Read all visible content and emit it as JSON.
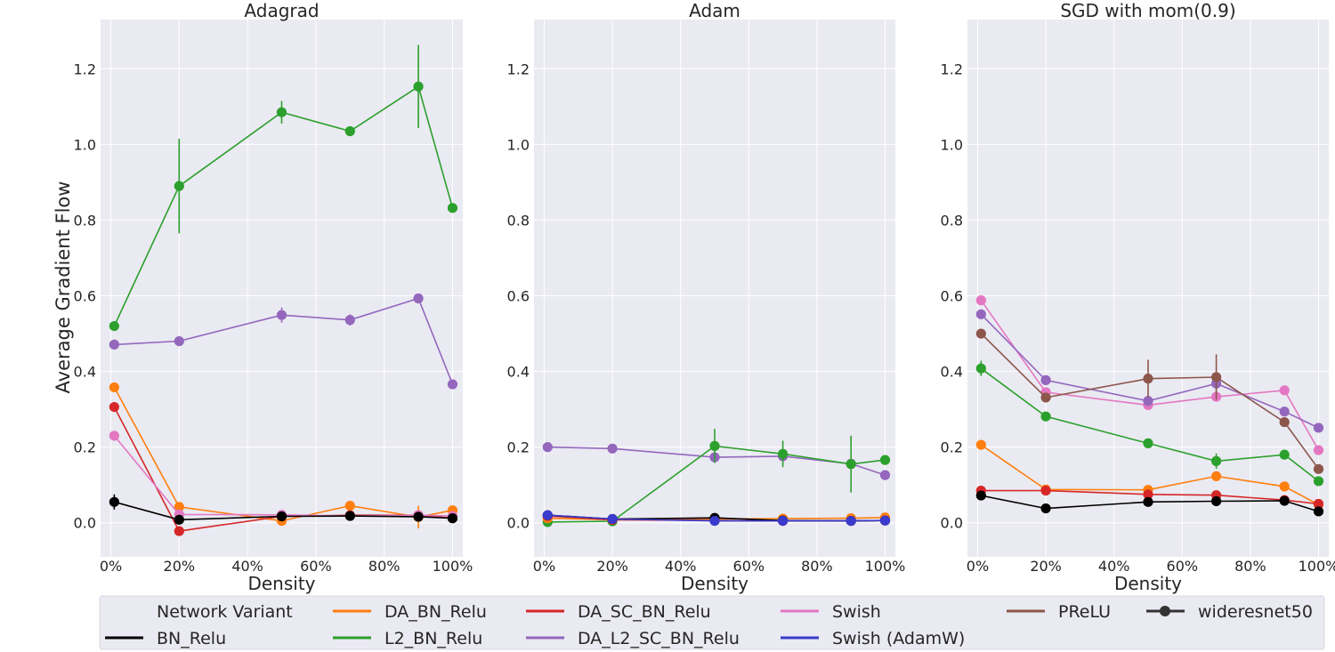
{
  "figure": {
    "ylabel": "Average Gradient Flow",
    "xlabel": "Density",
    "ylim": [
      -0.09,
      1.33
    ],
    "xlim": [
      -3,
      103
    ],
    "yticks": [
      0.0,
      0.2,
      0.4,
      0.6,
      0.8,
      1.0,
      1.2
    ],
    "ytick_labels": [
      "0.0",
      "0.2",
      "0.4",
      "0.6",
      "0.8",
      "1.0",
      "1.2"
    ],
    "xticks": [
      0,
      20,
      40,
      60,
      80,
      100
    ],
    "xtick_labels": [
      "0%",
      "20%",
      "40%",
      "60%",
      "80%",
      "100%"
    ]
  },
  "legend": {
    "title": "Network Variant",
    "entries": [
      {
        "name": "BN_Relu",
        "color": "#000000",
        "marker": false
      },
      {
        "name": "DA_BN_Relu",
        "color": "#ff7f0e",
        "marker": false
      },
      {
        "name": "L2_BN_Relu",
        "color": "#2ca02c",
        "marker": false
      },
      {
        "name": "DA_SC_BN_Relu",
        "color": "#d62728",
        "marker": false
      },
      {
        "name": "DA_L2_SC_BN_Relu",
        "color": "#9467bd",
        "marker": false
      },
      {
        "name": "Swish",
        "color": "#e377c2",
        "marker": false
      },
      {
        "name": "Swish (AdamW)",
        "color": "#3a3acc",
        "marker": false
      },
      {
        "name": "PReLU",
        "color": "#8c564b",
        "marker": false
      },
      {
        "name": "wideresnet50",
        "color": "#333333",
        "marker": true
      }
    ]
  },
  "chart_data": [
    {
      "type": "line",
      "title": "Adagrad",
      "xlabel": "Density",
      "ylabel": "Average Gradient Flow",
      "x": [
        1,
        20,
        50,
        70,
        90,
        100
      ],
      "series": [
        {
          "name": "L2_BN_Relu",
          "color": "#2ca02c",
          "x": [
            1,
            20,
            50,
            70,
            90,
            100
          ],
          "values": [
            0.52,
            0.89,
            1.085,
            1.035,
            1.153,
            0.832
          ],
          "err": [
            0.01,
            0.125,
            0.03,
            0.008,
            0.11,
            0.0
          ]
        },
        {
          "name": "DA_L2_SC_BN_Relu",
          "color": "#9467bd",
          "x": [
            1,
            20,
            50,
            70,
            90,
            100
          ],
          "values": [
            0.471,
            0.48,
            0.549,
            0.536,
            0.593,
            0.366
          ],
          "err": [
            0.0,
            0.0,
            0.02,
            0.015,
            0.0,
            0.0
          ]
        },
        {
          "name": "DA_BN_Relu",
          "color": "#ff7f0e",
          "x": [
            1,
            20,
            50,
            70,
            90,
            100
          ],
          "values": [
            0.358,
            0.042,
            0.005,
            0.045,
            0.015,
            0.033
          ],
          "err": [
            0.0,
            0.0,
            0.0,
            0.0,
            0.03,
            0.0
          ]
        },
        {
          "name": "DA_SC_BN_Relu",
          "color": "#d62728",
          "x": [
            1,
            20,
            50,
            70,
            90,
            100
          ],
          "values": [
            0.306,
            -0.022,
            0.017,
            0.02,
            0.02,
            0.012
          ],
          "err": [
            0.0,
            0.0,
            0.0,
            0.0,
            0.0,
            0.0
          ]
        },
        {
          "name": "Swish",
          "color": "#e377c2",
          "x": [
            1,
            20,
            50,
            70,
            90,
            100
          ],
          "values": [
            0.23,
            0.022,
            0.021,
            0.018,
            0.02,
            0.018
          ],
          "err": [
            0.0,
            0.0,
            0.0,
            0.0,
            0.0,
            0.0
          ]
        },
        {
          "name": "BN_Relu",
          "color": "#000000",
          "x": [
            1,
            20,
            50,
            70,
            90,
            100
          ],
          "values": [
            0.055,
            0.008,
            0.017,
            0.018,
            0.016,
            0.012
          ],
          "err": [
            0.02,
            0.0,
            0.0,
            0.0,
            0.0,
            0.0
          ]
        }
      ]
    },
    {
      "type": "line",
      "title": "Adam",
      "xlabel": "Density",
      "ylabel": "",
      "x": [
        1,
        20,
        50,
        70,
        90,
        100
      ],
      "series": [
        {
          "name": "DA_L2_SC_BN_Relu",
          "color": "#9467bd",
          "x": [
            1,
            20,
            50,
            70,
            90,
            100
          ],
          "values": [
            0.2,
            0.196,
            0.173,
            0.176,
            0.156,
            0.126
          ],
          "err": [
            0.0,
            0.0,
            0.0,
            0.0,
            0.0,
            0.0
          ]
        },
        {
          "name": "L2_BN_Relu",
          "color": "#2ca02c",
          "x": [
            1,
            20,
            50,
            70,
            90,
            100
          ],
          "values": [
            0.002,
            0.004,
            0.203,
            0.182,
            0.155,
            0.166
          ],
          "err": [
            0.0,
            0.0,
            0.045,
            0.035,
            0.075,
            0.0
          ]
        },
        {
          "name": "DA_BN_Relu",
          "color": "#ff7f0e",
          "x": [
            1,
            20,
            50,
            70,
            90,
            100
          ],
          "values": [
            0.012,
            0.008,
            0.01,
            0.011,
            0.012,
            0.014
          ],
          "err": [
            0.0,
            0.0,
            0.0,
            0.0,
            0.0,
            0.0
          ]
        },
        {
          "name": "DA_SC_BN_Relu",
          "color": "#d62728",
          "x": [
            1,
            20,
            50,
            70,
            90,
            100
          ],
          "values": [
            0.018,
            0.008,
            0.006,
            0.005,
            0.005,
            0.006
          ],
          "err": [
            0.0,
            0.0,
            0.0,
            0.0,
            0.0,
            0.0
          ]
        },
        {
          "name": "BN_Relu",
          "color": "#000000",
          "x": [
            1,
            20,
            50,
            70,
            90,
            100
          ],
          "values": [
            0.02,
            0.01,
            0.013,
            0.006,
            0.005,
            0.006
          ],
          "err": [
            0.0,
            0.0,
            0.0,
            0.0,
            0.0,
            0.0
          ]
        },
        {
          "name": "Swish (AdamW)",
          "color": "#3a3acc",
          "x": [
            1,
            20,
            50,
            70,
            90,
            100
          ],
          "values": [
            0.02,
            0.01,
            0.005,
            0.005,
            0.005,
            0.006
          ],
          "err": [
            0.0,
            0.0,
            0.0,
            0.0,
            0.0,
            0.0
          ]
        }
      ]
    },
    {
      "type": "line",
      "title": "SGD with mom(0.9)",
      "xlabel": "Density",
      "ylabel": "",
      "x": [
        1,
        20,
        50,
        70,
        90,
        100
      ],
      "series": [
        {
          "name": "Swish",
          "color": "#e377c2",
          "x": [
            1,
            20,
            50,
            70,
            90,
            100
          ],
          "values": [
            0.588,
            0.345,
            0.311,
            0.333,
            0.35,
            0.192
          ],
          "err": [
            0.0,
            0.0,
            0.0,
            0.0,
            0.0,
            0.0
          ]
        },
        {
          "name": "DA_L2_SC_BN_Relu",
          "color": "#9467bd",
          "x": [
            1,
            20,
            50,
            70,
            90,
            100
          ],
          "values": [
            0.551,
            0.377,
            0.322,
            0.368,
            0.294,
            0.251
          ],
          "err": [
            0.0,
            0.01,
            0.0,
            0.02,
            0.0,
            0.0
          ]
        },
        {
          "name": "PReLU",
          "color": "#8c564b",
          "x": [
            1,
            20,
            50,
            70,
            90,
            100
          ],
          "values": [
            0.5,
            0.331,
            0.381,
            0.385,
            0.266,
            0.142
          ],
          "err": [
            0.0,
            0.0,
            0.05,
            0.06,
            0.0,
            0.0
          ]
        },
        {
          "name": "L2_BN_Relu",
          "color": "#2ca02c",
          "x": [
            1,
            20,
            50,
            70,
            90,
            100
          ],
          "values": [
            0.408,
            0.281,
            0.21,
            0.163,
            0.18,
            0.11
          ],
          "err": [
            0.02,
            0.0,
            0.0,
            0.02,
            0.0,
            0.0
          ]
        },
        {
          "name": "DA_BN_Relu",
          "color": "#ff7f0e",
          "x": [
            1,
            20,
            50,
            70,
            90,
            100
          ],
          "values": [
            0.206,
            0.088,
            0.087,
            0.123,
            0.096,
            0.048
          ],
          "err": [
            0.0,
            0.0,
            0.0,
            0.0,
            0.0,
            0.0
          ]
        },
        {
          "name": "DA_SC_BN_Relu",
          "color": "#d62728",
          "x": [
            1,
            20,
            50,
            70,
            90,
            100
          ],
          "values": [
            0.085,
            0.085,
            0.075,
            0.073,
            0.06,
            0.05
          ],
          "err": [
            0.0,
            0.0,
            0.0,
            0.0,
            0.0,
            0.0
          ]
        },
        {
          "name": "BN_Relu",
          "color": "#000000",
          "x": [
            1,
            20,
            50,
            70,
            90,
            100
          ],
          "values": [
            0.072,
            0.038,
            0.055,
            0.057,
            0.058,
            0.03
          ],
          "err": [
            0.0,
            0.0,
            0.0,
            0.0,
            0.0,
            0.0
          ]
        }
      ]
    }
  ]
}
